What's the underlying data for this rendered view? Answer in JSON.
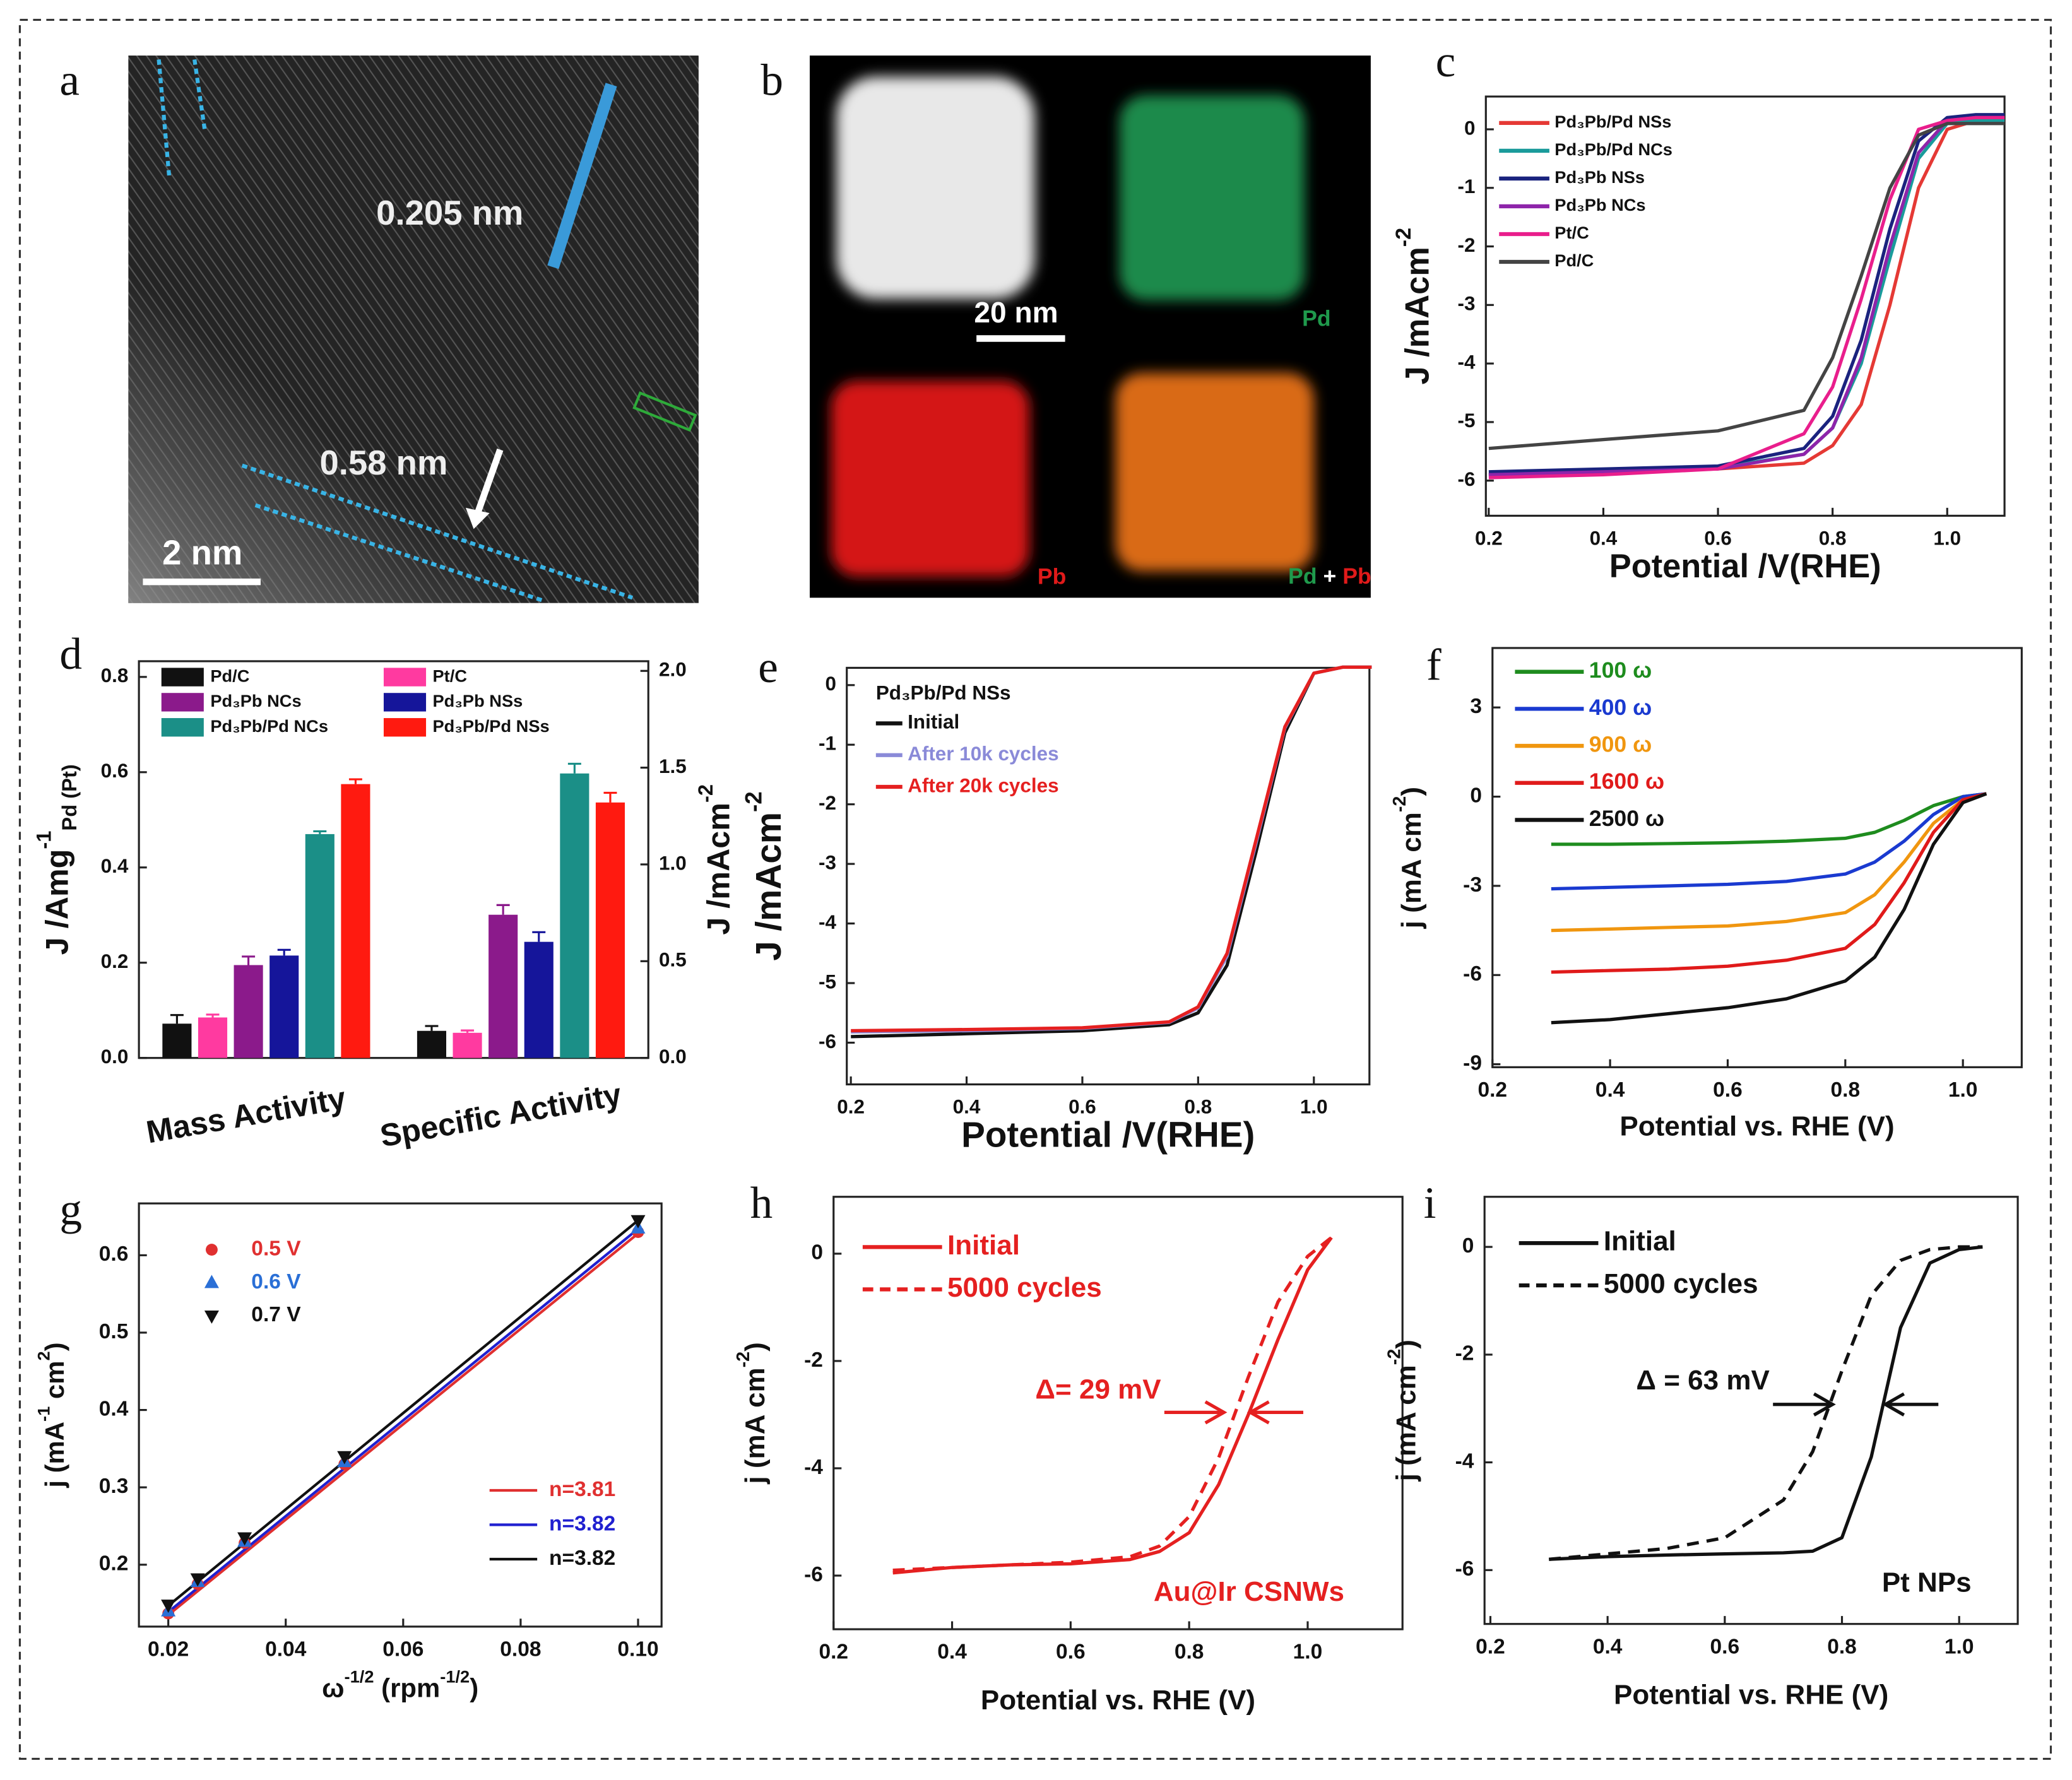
{
  "figure_images": [
    {
      "panel_label": "a",
      "annotations": [
        "0.205 nm",
        "0.58 nm",
        "2 nm"
      ]
    },
    {
      "panel_label": "b",
      "annotations": [
        "20 nm",
        "Pd",
        "Pb"
      ],
      "merge_label": [
        "Pd",
        "+",
        "Pb"
      ]
    }
  ],
  "chart_data": [
    {
      "type": "line",
      "panel_label": "c",
      "xlabel": "Potential /V(RHE)",
      "ylabel": [
        {
          "text": "J /mAcm"
        },
        {
          "text": "-2",
          "shift": "sup"
        }
      ],
      "xlim": [
        0.195,
        1.1
      ],
      "ylim": [
        -6.6,
        0.56
      ],
      "xticks": [
        0.2,
        0.4,
        0.6,
        0.8,
        {
          "value": 1,
          "label": "1.0"
        }
      ],
      "yticks": [
        0,
        -1,
        -2,
        -3,
        -4,
        -5,
        -6
      ],
      "legend": "upper left",
      "series": [
        {
          "name": "Pd₃Pb/Pd NSs",
          "color": "#e53935",
          "x": [
            0.2,
            0.4,
            0.6,
            0.75,
            0.8,
            0.85,
            0.9,
            0.95,
            1.0,
            1.05,
            1.1
          ],
          "values": [
            -5.9,
            -5.85,
            -5.8,
            -5.7,
            -5.4,
            -4.7,
            -3.0,
            -1.0,
            0,
            0.15,
            0.15
          ]
        },
        {
          "name": "Pd₃Pb/Pd NCs",
          "color": "#1a9b9b",
          "x": [
            0.2,
            0.4,
            0.6,
            0.75,
            0.8,
            0.85,
            0.9,
            0.95,
            1.0,
            1.05,
            1.1
          ],
          "values": [
            -5.9,
            -5.85,
            -5.78,
            -5.55,
            -5.1,
            -4.0,
            -2.2,
            -0.5,
            0.1,
            0.15,
            0.15
          ]
        },
        {
          "name": "Pd₃Pb NSs",
          "color": "#1a237e",
          "x": [
            0.2,
            0.4,
            0.6,
            0.75,
            0.8,
            0.85,
            0.9,
            0.95,
            1.0,
            1.05,
            1.1
          ],
          "values": [
            -5.85,
            -5.8,
            -5.75,
            -5.45,
            -4.9,
            -3.6,
            -1.7,
            -0.2,
            0.2,
            0.25,
            0.25
          ]
        },
        {
          "name": "Pd₃Pb NCs",
          "color": "#8e24aa",
          "x": [
            0.2,
            0.4,
            0.6,
            0.75,
            0.8,
            0.85,
            0.9,
            0.95,
            1.0,
            1.05,
            1.1
          ],
          "values": [
            -5.9,
            -5.85,
            -5.8,
            -5.55,
            -5.1,
            -3.9,
            -2.0,
            -0.4,
            0.15,
            0.2,
            0.2
          ]
        },
        {
          "name": "Pt/C",
          "color": "#e91e8c",
          "x": [
            0.2,
            0.4,
            0.6,
            0.75,
            0.8,
            0.85,
            0.9,
            0.95,
            1.0,
            1.05,
            1.1
          ],
          "values": [
            -5.95,
            -5.9,
            -5.8,
            -5.2,
            -4.4,
            -2.9,
            -1.2,
            0,
            0.15,
            0.2,
            0.2
          ]
        },
        {
          "name": "Pd/C",
          "color": "#444444",
          "x": [
            0.2,
            0.4,
            0.6,
            0.75,
            0.8,
            0.85,
            0.9,
            0.95,
            1.0,
            1.05,
            1.1
          ],
          "values": [
            -5.45,
            -5.3,
            -5.15,
            -4.8,
            -3.9,
            -2.5,
            -1.0,
            -0.1,
            0.1,
            0.1,
            0.1
          ]
        }
      ]
    },
    {
      "type": "bar",
      "panel_label": "d",
      "categories": [
        "Mass Activity",
        "Specific Activity"
      ],
      "category_axes": [
        "y",
        "y2"
      ],
      "ylabel": [
        {
          "text": "J /Amg"
        },
        {
          "text": "-1",
          "shift": "sup"
        },
        {
          "text": "Pd (Pt)",
          "shift": "sub"
        }
      ],
      "y2label": [
        {
          "text": "J /mAcm"
        },
        {
          "text": "-2",
          "shift": "sup"
        }
      ],
      "ylim": [
        0,
        0.833
      ],
      "yticks": [
        {
          "value": 0,
          "label": "0.0"
        },
        0.2,
        0.4,
        0.6,
        0.8
      ],
      "y2lim": [
        0,
        2.05
      ],
      "y2ticks": [
        {
          "value": 0,
          "label": "0.0"
        },
        0.5,
        {
          "value": 1,
          "label": "1.0"
        },
        1.5,
        {
          "value": 2,
          "label": "2.0"
        }
      ],
      "legend": "upper left",
      "series": [
        {
          "name": "Pd/C",
          "color": "#111111",
          "values": [
            0.072,
            0.14
          ],
          "errors": [
            0.018,
            0.025
          ]
        },
        {
          "name": "Pt/C",
          "color": "#ff3aa0",
          "values": [
            0.085,
            0.13
          ],
          "errors": [
            0.006,
            0.012
          ]
        },
        {
          "name": "Pd₃Pb NCs",
          "color": "#8b1a8b",
          "values": [
            0.195,
            0.74
          ],
          "errors": [
            0.018,
            0.05
          ]
        },
        {
          "name": "Pd₃Pb NSs",
          "color": "#15159a",
          "values": [
            0.215,
            0.6
          ],
          "errors": [
            0.012,
            0.05
          ]
        },
        {
          "name": "Pd₃Pb/Pd NCs",
          "color": "#1b8f87",
          "values": [
            0.47,
            1.47
          ],
          "errors": [
            0.006,
            0.05
          ]
        },
        {
          "name": "Pd₃Pb/Pd NSs",
          "color": "#ff1a10",
          "values": [
            0.575,
            1.32
          ],
          "errors": [
            0.01,
            0.05
          ]
        }
      ]
    },
    {
      "type": "line",
      "panel_label": "e",
      "xlabel": "Potential /V(RHE)",
      "ylabel": [
        {
          "text": "J /mAcm"
        },
        {
          "text": "-2",
          "shift": "sup"
        }
      ],
      "xlim": [
        0.193,
        1.096
      ],
      "ylim": [
        -6.7,
        0.29
      ],
      "xticks": [
        0.2,
        0.4,
        0.6,
        0.8,
        {
          "value": 1,
          "label": "1.0"
        }
      ],
      "yticks": [
        0,
        -1,
        -2,
        -3,
        -4,
        -5,
        -6
      ],
      "legend": "upper left",
      "legend_title": "Pd₃Pb/Pd NSs",
      "legend_text_colored": true,
      "series": [
        {
          "name": "Initial",
          "color": "#111111",
          "x": [
            0.2,
            0.4,
            0.6,
            0.75,
            0.8,
            0.85,
            0.9,
            0.95,
            1.0,
            1.05,
            1.1
          ],
          "values": [
            -5.9,
            -5.85,
            -5.8,
            -5.7,
            -5.5,
            -4.7,
            -2.8,
            -0.8,
            0.2,
            0.3,
            0.3
          ]
        },
        {
          "name": "After 10k cycles",
          "color": "#8a8ad8",
          "x": [
            0.2,
            0.4,
            0.6,
            0.75,
            0.8,
            0.85,
            0.9,
            0.95,
            1.0,
            1.05,
            1.1
          ],
          "values": [
            -5.82,
            -5.8,
            -5.76,
            -5.66,
            -5.42,
            -4.55,
            -2.65,
            -0.72,
            0.2,
            0.3,
            0.3
          ]
        },
        {
          "name": "After 20k cycles",
          "color": "#e52020",
          "x": [
            0.2,
            0.4,
            0.6,
            0.75,
            0.8,
            0.85,
            0.9,
            0.95,
            1.0,
            1.05,
            1.1
          ],
          "values": [
            -5.8,
            -5.78,
            -5.75,
            -5.65,
            -5.4,
            -4.5,
            -2.6,
            -0.7,
            0.2,
            0.3,
            0.3
          ]
        }
      ]
    },
    {
      "type": "line",
      "panel_label": "f",
      "xlabel": "Potential vs. RHE (V)",
      "ylabel": [
        {
          "text": "j (mA cm"
        },
        {
          "text": "-2",
          "shift": "sup"
        },
        {
          "text": ")"
        }
      ],
      "xlim": [
        0.2,
        1.1
      ],
      "ylim": [
        -9.1,
        5
      ],
      "xticks": [
        0.2,
        0.4,
        0.6,
        0.8,
        {
          "value": 1,
          "label": "1.0"
        }
      ],
      "yticks": [
        3,
        0,
        -3,
        -6,
        -9
      ],
      "legend": "upper left",
      "legend_text_colored": true,
      "series": [
        {
          "name": "100 ω",
          "color": "#1e8c1e",
          "x": [
            0.3,
            0.4,
            0.5,
            0.6,
            0.7,
            0.8,
            0.85,
            0.9,
            0.95,
            1.0,
            1.04
          ],
          "values": [
            -1.6,
            -1.6,
            -1.58,
            -1.55,
            -1.5,
            -1.4,
            -1.2,
            -0.8,
            -0.3,
            0,
            0.1
          ]
        },
        {
          "name": "400 ω",
          "color": "#1a3ad0",
          "x": [
            0.3,
            0.4,
            0.5,
            0.6,
            0.7,
            0.8,
            0.85,
            0.9,
            0.95,
            1.0,
            1.04
          ],
          "values": [
            -3.1,
            -3.05,
            -3.0,
            -2.95,
            -2.85,
            -2.6,
            -2.2,
            -1.5,
            -0.6,
            0,
            0.1
          ]
        },
        {
          "name": "900 ω",
          "color": "#f0960f",
          "x": [
            0.3,
            0.4,
            0.5,
            0.6,
            0.7,
            0.8,
            0.85,
            0.9,
            0.95,
            1.0,
            1.04
          ],
          "values": [
            -4.5,
            -4.45,
            -4.4,
            -4.35,
            -4.2,
            -3.9,
            -3.3,
            -2.2,
            -0.9,
            -0.1,
            0.1
          ]
        },
        {
          "name": "1600 ω",
          "color": "#e01a1a",
          "x": [
            0.3,
            0.4,
            0.5,
            0.6,
            0.7,
            0.8,
            0.85,
            0.9,
            0.95,
            1.0,
            1.04
          ],
          "values": [
            -5.9,
            -5.85,
            -5.8,
            -5.7,
            -5.5,
            -5.1,
            -4.3,
            -2.9,
            -1.2,
            -0.1,
            0.1
          ]
        },
        {
          "name": "2500 ω",
          "color": "#111111",
          "x": [
            0.3,
            0.4,
            0.5,
            0.6,
            0.7,
            0.8,
            0.85,
            0.9,
            0.95,
            1.0,
            1.04
          ],
          "values": [
            -7.6,
            -7.5,
            -7.3,
            -7.1,
            -6.8,
            -6.2,
            -5.4,
            -3.8,
            -1.6,
            -0.2,
            0.1
          ]
        }
      ]
    },
    {
      "type": "scatter",
      "panel_label": "g",
      "xlabel": [
        {
          "text": "ω"
        },
        {
          "text": "-1/2",
          "shift": "sup"
        },
        {
          "text": " (rpm"
        },
        {
          "text": "-1/2",
          "shift": "sup"
        },
        {
          "text": ")"
        }
      ],
      "ylabel": [
        {
          "text": "j (mA"
        },
        {
          "text": "-1",
          "shift": "sup"
        },
        {
          "text": " cm"
        },
        {
          "text": "2",
          "shift": "sup"
        },
        {
          "text": ")"
        }
      ],
      "xlim": [
        0.015,
        0.104
      ],
      "ylim": [
        0.12,
        0.667
      ],
      "xticks": [
        0.02,
        0.04,
        0.06,
        0.08,
        {
          "value": 0.1,
          "label": "0.10"
        }
      ],
      "yticks": [
        0.2,
        0.3,
        0.4,
        0.5,
        0.6
      ],
      "legend": "upper left",
      "legend_text_colored": true,
      "series": [
        {
          "name": "0.5 V",
          "color": "#e03030",
          "marker": "circle",
          "x": [
            0.02,
            0.025,
            0.033,
            0.05,
            0.1
          ],
          "values": [
            0.137,
            0.175,
            0.228,
            0.33,
            0.63
          ]
        },
        {
          "name": "0.6 V",
          "color": "#2a6fd6",
          "marker": "triangle-up",
          "x": [
            0.02,
            0.025,
            0.033,
            0.05,
            0.1
          ],
          "values": [
            0.14,
            0.178,
            0.23,
            0.333,
            0.635
          ]
        },
        {
          "name": "0.7 V",
          "color": "#111111",
          "marker": "triangle-down",
          "x": [
            0.02,
            0.025,
            0.033,
            0.05,
            0.1
          ],
          "values": [
            0.148,
            0.182,
            0.235,
            0.34,
            0.645
          ]
        }
      ],
      "fits": [
        {
          "name": "n=3.81",
          "color": "#e03030",
          "x": [
            0.02,
            0.1
          ],
          "values": [
            0.135,
            0.628
          ]
        },
        {
          "name": "n=3.82",
          "color": "#2020d0",
          "x": [
            0.02,
            0.1
          ],
          "values": [
            0.139,
            0.634
          ]
        },
        {
          "name": "n=3.82",
          "color": "#111111",
          "x": [
            0.02,
            0.1
          ],
          "values": [
            0.147,
            0.645
          ]
        }
      ],
      "fit_legend": "lower right"
    },
    {
      "type": "line",
      "panel_label": "h",
      "xlabel": "Potential vs. RHE (V)",
      "ylabel": [
        {
          "text": "j (mA cm"
        },
        {
          "text": "-2",
          "shift": "sup"
        },
        {
          "text": ")"
        }
      ],
      "xlim": [
        0.2,
        1.16
      ],
      "ylim": [
        -7,
        1.06
      ],
      "xticks": [
        0.2,
        0.4,
        0.6,
        0.8,
        {
          "value": 1,
          "label": "1.0"
        }
      ],
      "yticks": [
        0,
        -2,
        -4,
        -6
      ],
      "legend": "upper left",
      "legend_text_colored": true,
      "series": [
        {
          "name": "Initial",
          "color": "#e52020",
          "x": [
            0.3,
            0.4,
            0.5,
            0.6,
            0.7,
            0.75,
            0.8,
            0.85,
            0.9,
            0.95,
            1.0,
            1.04
          ],
          "values": [
            -5.95,
            -5.85,
            -5.8,
            -5.78,
            -5.7,
            -5.55,
            -5.2,
            -4.3,
            -3.0,
            -1.6,
            -0.3,
            0.3
          ]
        },
        {
          "name": "5000 cycles",
          "color": "#e52020",
          "dash": true,
          "x": [
            0.3,
            0.4,
            0.5,
            0.6,
            0.7,
            0.75,
            0.8,
            0.85,
            0.9,
            0.95,
            1.0,
            1.04
          ],
          "values": [
            -5.9,
            -5.85,
            -5.8,
            -5.75,
            -5.65,
            -5.45,
            -4.9,
            -3.8,
            -2.3,
            -0.9,
            -0.05,
            0.3
          ]
        }
      ],
      "annotations": [
        {
          "text": "Δ= 29 mV",
          "color": "#e52020"
        },
        {
          "text": "Au@Ir CSNWs",
          "color": "#e52020"
        }
      ]
    },
    {
      "type": "line",
      "panel_label": "i",
      "xlabel": "Potential vs. RHE (V)",
      "ylabel": [
        {
          "text": "j (mA cm"
        },
        {
          "text": "-2",
          "shift": "sup"
        },
        {
          "text": ")"
        }
      ],
      "xlim": [
        0.19,
        1.1
      ],
      "ylim": [
        -7,
        0.93
      ],
      "xticks": [
        0.2,
        0.4,
        0.6,
        0.8,
        {
          "value": 1,
          "label": "1.0"
        }
      ],
      "yticks": [
        0,
        -2,
        -4,
        -6
      ],
      "legend": "upper left",
      "series": [
        {
          "name": "Initial",
          "color": "#111111",
          "x": [
            0.3,
            0.4,
            0.5,
            0.6,
            0.7,
            0.75,
            0.8,
            0.85,
            0.9,
            0.95,
            1.0,
            1.04
          ],
          "values": [
            -5.8,
            -5.75,
            -5.72,
            -5.7,
            -5.68,
            -5.65,
            -5.4,
            -3.9,
            -1.5,
            -0.3,
            -0.05,
            0
          ]
        },
        {
          "name": "5000 cycles",
          "color": "#111111",
          "dash": true,
          "x": [
            0.3,
            0.4,
            0.5,
            0.6,
            0.7,
            0.75,
            0.8,
            0.85,
            0.9,
            0.95,
            1.0,
            1.04
          ],
          "values": [
            -5.8,
            -5.7,
            -5.6,
            -5.4,
            -4.7,
            -3.8,
            -2.3,
            -0.9,
            -0.25,
            -0.05,
            0,
            0
          ]
        }
      ],
      "annotations": [
        {
          "text": "Δ = 63 mV",
          "color": "#111111"
        },
        {
          "text": "Pt NPs",
          "color": "#111111"
        }
      ]
    }
  ]
}
